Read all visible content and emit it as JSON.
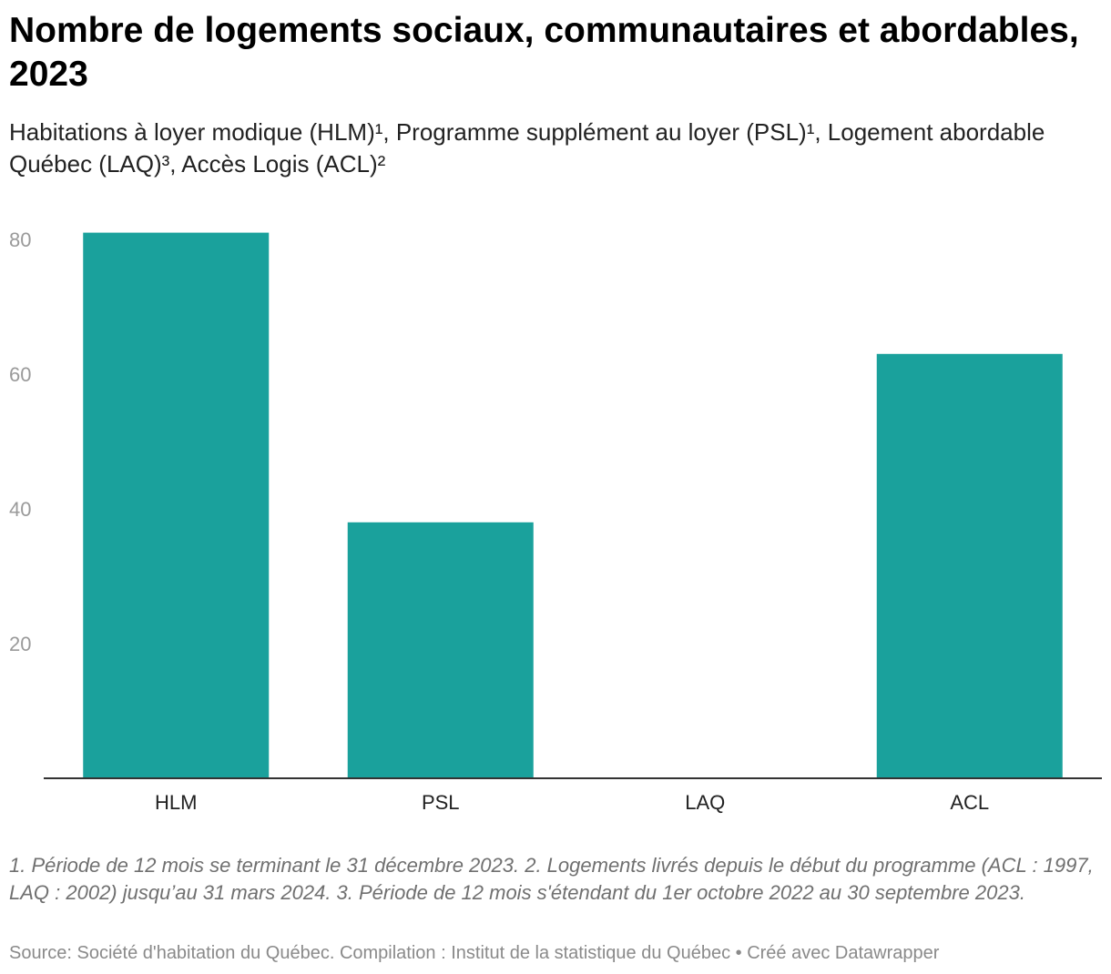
{
  "header": {
    "title": "Nombre de logements sociaux, communautaires et abordables, 2023",
    "subtitle": "Habitations à loyer modique (HLM)¹, Programme supplément au loyer (PSL)¹, Logement abordable Québec (LAQ)³, Accès Logis (ACL)²"
  },
  "chart_data": {
    "type": "bar",
    "categories": [
      "HLM",
      "PSL",
      "LAQ",
      "ACL"
    ],
    "values": [
      81,
      38,
      0,
      63
    ],
    "title": "Nombre de logements sociaux, communautaires et abordables, 2023",
    "xlabel": "",
    "ylabel": "",
    "ylim": [
      0,
      80
    ],
    "yticks": [
      20,
      40,
      60,
      80
    ],
    "grid": false,
    "color": "#1aa19c"
  },
  "footer": {
    "notes": "1. Période de 12 mois se terminant le 31 décembre 2023. 2. Logements livrés depuis le début du programme (ACL : 1997, LAQ : 2002) jusqu’au 31 mars 2024. 3. Période de 12 mois s'étendant du 1er octobre 2022 au 30 septembre 2023.",
    "source": "Source: Société d'habitation du Québec. Compilation : Institut de la statistique du Québec • Créé avec Datawrapper"
  }
}
